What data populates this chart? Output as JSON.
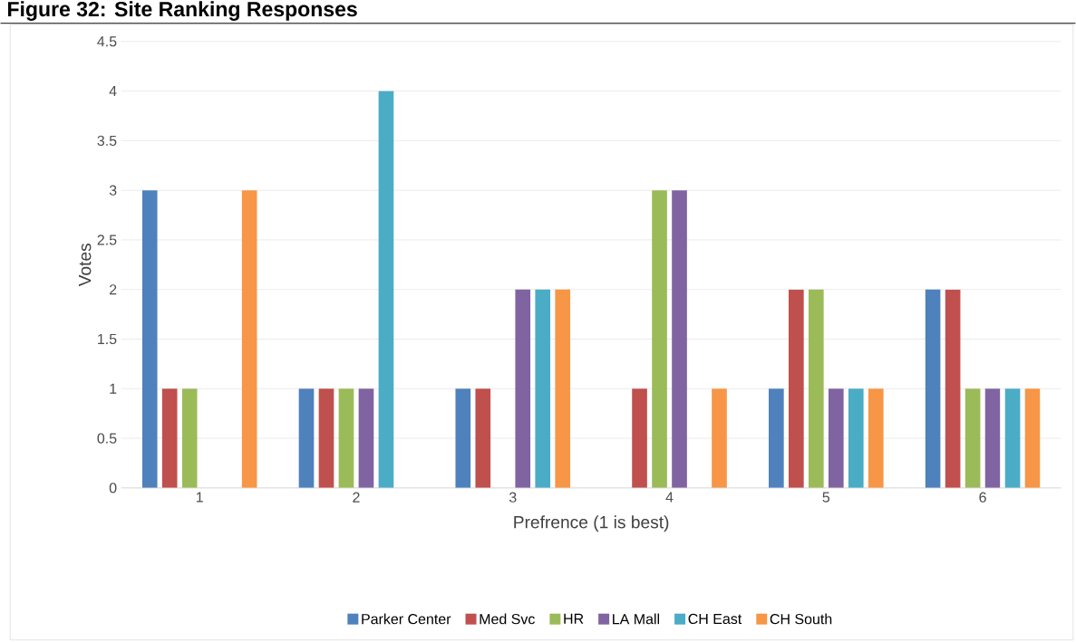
{
  "chart_data": {
    "type": "bar",
    "title": "Figure 32: Site Ranking Responses",
    "xlabel": "Prefrence (1 is best)",
    "ylabel": "Votes",
    "categories": [
      "1",
      "2",
      "3",
      "4",
      "5",
      "6"
    ],
    "series": [
      {
        "name": "Parker Center",
        "color": "#4f81bd",
        "values": [
          3,
          1,
          1,
          0,
          1,
          2
        ]
      },
      {
        "name": "Med Svc",
        "color": "#c0504d",
        "values": [
          1,
          1,
          1,
          1,
          2,
          2
        ]
      },
      {
        "name": "HR",
        "color": "#9bbb59",
        "values": [
          1,
          1,
          0,
          3,
          2,
          1
        ]
      },
      {
        "name": "LA Mall",
        "color": "#8064a2",
        "values": [
          0,
          1,
          2,
          3,
          1,
          1
        ]
      },
      {
        "name": "CH East",
        "color": "#4bacc6",
        "values": [
          0,
          4,
          2,
          0,
          1,
          1
        ]
      },
      {
        "name": "CH South",
        "color": "#f79646",
        "values": [
          3,
          0,
          2,
          1,
          1,
          1
        ]
      }
    ],
    "ylim": [
      0,
      4.5
    ],
    "yticks": [
      0,
      0.5,
      1,
      1.5,
      2,
      2.5,
      3,
      3.5,
      4,
      4.5
    ],
    "grid": "y",
    "legend": "bottom"
  }
}
